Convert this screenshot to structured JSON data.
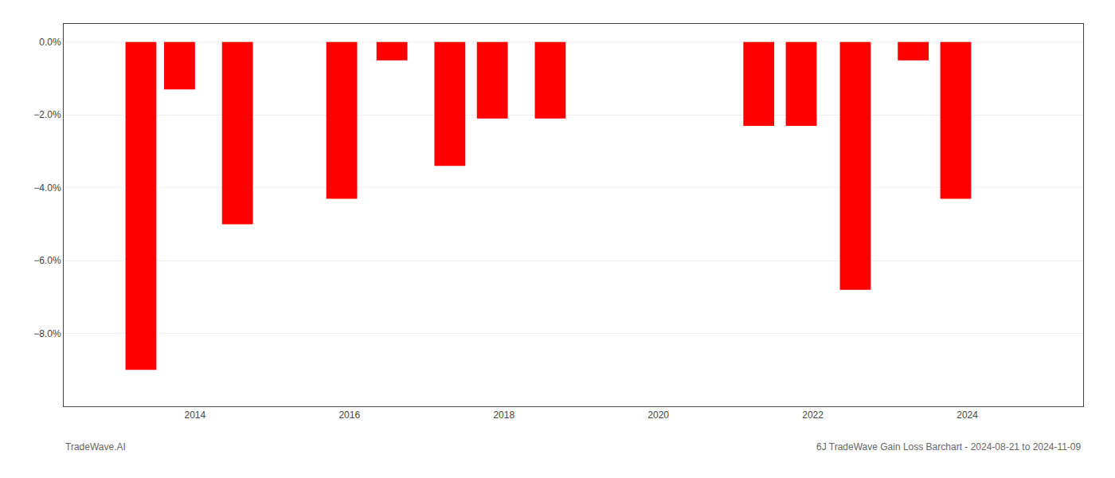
{
  "chart_data": {
    "type": "bar",
    "x": [
      2013.3,
      2013.8,
      2014.55,
      2015.9,
      2016.55,
      2017.3,
      2017.85,
      2018.6,
      2021.3,
      2021.85,
      2022.55,
      2023.3,
      2023.85
    ],
    "values": [
      -9.0,
      -1.3,
      -5.0,
      -4.3,
      -0.5,
      -3.4,
      -2.1,
      -2.1,
      -2.3,
      -2.3,
      -6.8,
      -0.5,
      -4.3
    ],
    "color": "#ff0000",
    "xlim": [
      2012.3,
      2025.5
    ],
    "xticks": [
      2014,
      2016,
      2018,
      2020,
      2022,
      2024
    ],
    "ylim": [
      -10.0,
      0.5
    ],
    "yticks": [
      {
        "value": 0,
        "label": "0.0%"
      },
      {
        "value": -2,
        "label": "−2.0%"
      },
      {
        "value": -4,
        "label": "−4.0%"
      },
      {
        "value": -6,
        "label": "−6.0%"
      },
      {
        "value": -8,
        "label": "−8.0%"
      }
    ],
    "grid": true,
    "annotations": [
      {
        "text": "TradeWave.AI"
      },
      {
        "text": "6J TradeWave Gain Loss Barchart - 2024-08-21 to 2024-11-09"
      }
    ]
  }
}
